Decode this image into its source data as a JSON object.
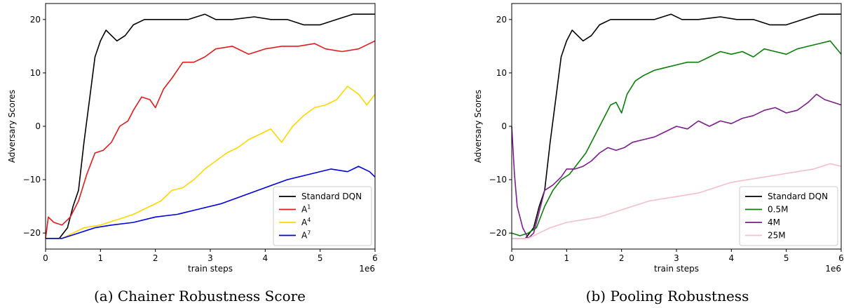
{
  "chart_data": [
    {
      "type": "line",
      "caption": "(a) Chainer Robustness Score",
      "xlabel": "train steps",
      "ylabel": "Adversary Scores",
      "x_multiplier": "1e6",
      "xlim": [
        0,
        6
      ],
      "ylim": [
        -23,
        23
      ],
      "xticks": [
        "0",
        "1",
        "2",
        "3",
        "4",
        "5",
        "6"
      ],
      "yticks": [
        "−20",
        "−10",
        "0",
        "10",
        "20"
      ],
      "legend_position": "lower-right",
      "series": [
        {
          "name": "Standard DQN",
          "label_main": "Standard DQN",
          "label_sup": "",
          "color": "#000000",
          "points": [
            [
              0,
              -21
            ],
            [
              0.25,
              -21
            ],
            [
              0.4,
              -19
            ],
            [
              0.5,
              -15
            ],
            [
              0.6,
              -12
            ],
            [
              0.7,
              -3
            ],
            [
              0.8,
              5
            ],
            [
              0.9,
              13
            ],
            [
              1.0,
              16
            ],
            [
              1.1,
              18
            ],
            [
              1.2,
              17
            ],
            [
              1.3,
              16
            ],
            [
              1.45,
              17
            ],
            [
              1.6,
              19
            ],
            [
              1.8,
              20
            ],
            [
              2.0,
              20
            ],
            [
              2.3,
              20
            ],
            [
              2.6,
              20
            ],
            [
              2.9,
              21
            ],
            [
              3.1,
              20
            ],
            [
              3.4,
              20
            ],
            [
              3.8,
              20.5
            ],
            [
              4.1,
              20
            ],
            [
              4.4,
              20
            ],
            [
              4.7,
              19
            ],
            [
              5.0,
              19
            ],
            [
              5.3,
              20
            ],
            [
              5.6,
              21
            ],
            [
              5.85,
              21
            ],
            [
              6.0,
              21
            ]
          ]
        },
        {
          "name": "A1",
          "label_main": "A",
          "label_sup": "1",
          "color": "#e41a1c",
          "points": [
            [
              0,
              -21
            ],
            [
              0.05,
              -17
            ],
            [
              0.15,
              -18
            ],
            [
              0.3,
              -18.5
            ],
            [
              0.45,
              -17
            ],
            [
              0.6,
              -14
            ],
            [
              0.75,
              -9
            ],
            [
              0.9,
              -5
            ],
            [
              1.05,
              -4.5
            ],
            [
              1.2,
              -3
            ],
            [
              1.35,
              0
            ],
            [
              1.5,
              1
            ],
            [
              1.6,
              3
            ],
            [
              1.75,
              5.5
            ],
            [
              1.9,
              5
            ],
            [
              2.0,
              3.5
            ],
            [
              2.15,
              7
            ],
            [
              2.3,
              9
            ],
            [
              2.5,
              12
            ],
            [
              2.7,
              12
            ],
            [
              2.9,
              13
            ],
            [
              3.1,
              14.5
            ],
            [
              3.4,
              15
            ],
            [
              3.7,
              13.5
            ],
            [
              4.0,
              14.5
            ],
            [
              4.3,
              15
            ],
            [
              4.6,
              15
            ],
            [
              4.9,
              15.5
            ],
            [
              5.1,
              14.5
            ],
            [
              5.4,
              14
            ],
            [
              5.7,
              14.5
            ],
            [
              6.0,
              16
            ]
          ]
        },
        {
          "name": "A4",
          "label_main": "A",
          "label_sup": "4",
          "color": "#ffd700",
          "points": [
            [
              0,
              -21
            ],
            [
              0.3,
              -21
            ],
            [
              0.5,
              -20
            ],
            [
              0.7,
              -19
            ],
            [
              1.0,
              -18.5
            ],
            [
              1.3,
              -17.5
            ],
            [
              1.6,
              -16.5
            ],
            [
              1.9,
              -15
            ],
            [
              2.1,
              -14
            ],
            [
              2.3,
              -12
            ],
            [
              2.5,
              -11.5
            ],
            [
              2.7,
              -10
            ],
            [
              2.9,
              -8
            ],
            [
              3.1,
              -6.5
            ],
            [
              3.3,
              -5
            ],
            [
              3.5,
              -4
            ],
            [
              3.7,
              -2.5
            ],
            [
              3.9,
              -1.5
            ],
            [
              4.1,
              -0.5
            ],
            [
              4.3,
              -3
            ],
            [
              4.5,
              0
            ],
            [
              4.7,
              2
            ],
            [
              4.9,
              3.5
            ],
            [
              5.1,
              4
            ],
            [
              5.3,
              5
            ],
            [
              5.5,
              7.5
            ],
            [
              5.7,
              6
            ],
            [
              5.85,
              4
            ],
            [
              6.0,
              6
            ]
          ]
        },
        {
          "name": "A7",
          "label_main": "A",
          "label_sup": "7",
          "color": "#0000e0",
          "points": [
            [
              0,
              -21
            ],
            [
              0.3,
              -21
            ],
            [
              0.6,
              -20
            ],
            [
              0.9,
              -19
            ],
            [
              1.2,
              -18.5
            ],
            [
              1.6,
              -18
            ],
            [
              2.0,
              -17
            ],
            [
              2.4,
              -16.5
            ],
            [
              2.8,
              -15.5
            ],
            [
              3.2,
              -14.5
            ],
            [
              3.6,
              -13
            ],
            [
              4.0,
              -11.5
            ],
            [
              4.4,
              -10
            ],
            [
              4.8,
              -9
            ],
            [
              5.2,
              -8
            ],
            [
              5.5,
              -8.5
            ],
            [
              5.7,
              -7.5
            ],
            [
              5.9,
              -8.5
            ],
            [
              6.0,
              -9.5
            ]
          ]
        }
      ]
    },
    {
      "type": "line",
      "caption": "(b) Pooling Robustness",
      "xlabel": "train steps",
      "ylabel": "Adversary Scores",
      "x_multiplier": "1e6",
      "xlim": [
        0,
        6
      ],
      "ylim": [
        -23,
        23
      ],
      "xticks": [
        "0",
        "1",
        "2",
        "3",
        "4",
        "5",
        "6"
      ],
      "yticks": [
        "−20",
        "−10",
        "0",
        "10",
        "20"
      ],
      "legend_position": "lower-right",
      "series": [
        {
          "name": "Standard DQN",
          "label_main": "Standard DQN",
          "label_sup": "",
          "color": "#000000",
          "points": [
            [
              0,
              -21
            ],
            [
              0.25,
              -21
            ],
            [
              0.4,
              -19
            ],
            [
              0.5,
              -15
            ],
            [
              0.6,
              -12
            ],
            [
              0.7,
              -3
            ],
            [
              0.8,
              5
            ],
            [
              0.9,
              13
            ],
            [
              1.0,
              16
            ],
            [
              1.1,
              18
            ],
            [
              1.2,
              17
            ],
            [
              1.3,
              16
            ],
            [
              1.45,
              17
            ],
            [
              1.6,
              19
            ],
            [
              1.8,
              20
            ],
            [
              2.0,
              20
            ],
            [
              2.3,
              20
            ],
            [
              2.6,
              20
            ],
            [
              2.9,
              21
            ],
            [
              3.1,
              20
            ],
            [
              3.4,
              20
            ],
            [
              3.8,
              20.5
            ],
            [
              4.1,
              20
            ],
            [
              4.4,
              20
            ],
            [
              4.7,
              19
            ],
            [
              5.0,
              19
            ],
            [
              5.3,
              20
            ],
            [
              5.6,
              21
            ],
            [
              5.85,
              21
            ],
            [
              6.0,
              21
            ]
          ]
        },
        {
          "name": "0.5M",
          "label_main": "0.5M",
          "label_sup": "",
          "color": "#0a7d0a",
          "points": [
            [
              0,
              -20
            ],
            [
              0.15,
              -20.5
            ],
            [
              0.3,
              -20
            ],
            [
              0.45,
              -19
            ],
            [
              0.6,
              -15
            ],
            [
              0.75,
              -12
            ],
            [
              0.9,
              -10
            ],
            [
              1.05,
              -9
            ],
            [
              1.2,
              -7
            ],
            [
              1.35,
              -5
            ],
            [
              1.5,
              -2
            ],
            [
              1.65,
              1
            ],
            [
              1.8,
              4
            ],
            [
              1.9,
              4.5
            ],
            [
              2.0,
              2.5
            ],
            [
              2.1,
              6
            ],
            [
              2.25,
              8.5
            ],
            [
              2.4,
              9.5
            ],
            [
              2.6,
              10.5
            ],
            [
              2.8,
              11
            ],
            [
              3.0,
              11.5
            ],
            [
              3.2,
              12
            ],
            [
              3.4,
              12
            ],
            [
              3.6,
              13
            ],
            [
              3.8,
              14
            ],
            [
              4.0,
              13.5
            ],
            [
              4.2,
              14
            ],
            [
              4.4,
              13
            ],
            [
              4.6,
              14.5
            ],
            [
              4.8,
              14
            ],
            [
              5.0,
              13.5
            ],
            [
              5.2,
              14.5
            ],
            [
              5.4,
              15
            ],
            [
              5.6,
              15.5
            ],
            [
              5.8,
              16
            ],
            [
              6.0,
              13.5
            ]
          ]
        },
        {
          "name": "4M",
          "label_main": "4M",
          "label_sup": "",
          "color": "#7b1e8c",
          "points": [
            [
              0,
              0
            ],
            [
              0.05,
              -9
            ],
            [
              0.1,
              -15
            ],
            [
              0.2,
              -19
            ],
            [
              0.3,
              -21
            ],
            [
              0.4,
              -20
            ],
            [
              0.5,
              -16
            ],
            [
              0.6,
              -12
            ],
            [
              0.75,
              -11
            ],
            [
              0.9,
              -9.5
            ],
            [
              1.0,
              -8
            ],
            [
              1.15,
              -8
            ],
            [
              1.3,
              -7.5
            ],
            [
              1.45,
              -6.5
            ],
            [
              1.6,
              -5
            ],
            [
              1.75,
              -4
            ],
            [
              1.9,
              -4.5
            ],
            [
              2.05,
              -4
            ],
            [
              2.2,
              -3
            ],
            [
              2.4,
              -2.5
            ],
            [
              2.6,
              -2
            ],
            [
              2.8,
              -1
            ],
            [
              3.0,
              0
            ],
            [
              3.2,
              -0.5
            ],
            [
              3.4,
              1
            ],
            [
              3.6,
              0
            ],
            [
              3.8,
              1
            ],
            [
              4.0,
              0.5
            ],
            [
              4.2,
              1.5
            ],
            [
              4.4,
              2
            ],
            [
              4.6,
              3
            ],
            [
              4.8,
              3.5
            ],
            [
              5.0,
              2.5
            ],
            [
              5.2,
              3
            ],
            [
              5.4,
              4.5
            ],
            [
              5.55,
              6
            ],
            [
              5.7,
              5
            ],
            [
              5.85,
              4.5
            ],
            [
              6.0,
              4
            ]
          ]
        },
        {
          "name": "25M",
          "label_main": "25M",
          "label_sup": "",
          "color": "#f4bfcb",
          "points": [
            [
              0,
              -21
            ],
            [
              0.3,
              -21
            ],
            [
              0.5,
              -20
            ],
            [
              0.7,
              -19
            ],
            [
              1.0,
              -18
            ],
            [
              1.3,
              -17.5
            ],
            [
              1.6,
              -17
            ],
            [
              1.9,
              -16
            ],
            [
              2.2,
              -15
            ],
            [
              2.5,
              -14
            ],
            [
              2.8,
              -13.5
            ],
            [
              3.1,
              -13
            ],
            [
              3.4,
              -12.5
            ],
            [
              3.7,
              -11.5
            ],
            [
              4.0,
              -10.5
            ],
            [
              4.3,
              -10
            ],
            [
              4.6,
              -9.5
            ],
            [
              4.9,
              -9
            ],
            [
              5.2,
              -8.5
            ],
            [
              5.5,
              -8
            ],
            [
              5.8,
              -7
            ],
            [
              6.0,
              -7.5
            ]
          ]
        }
      ]
    }
  ]
}
